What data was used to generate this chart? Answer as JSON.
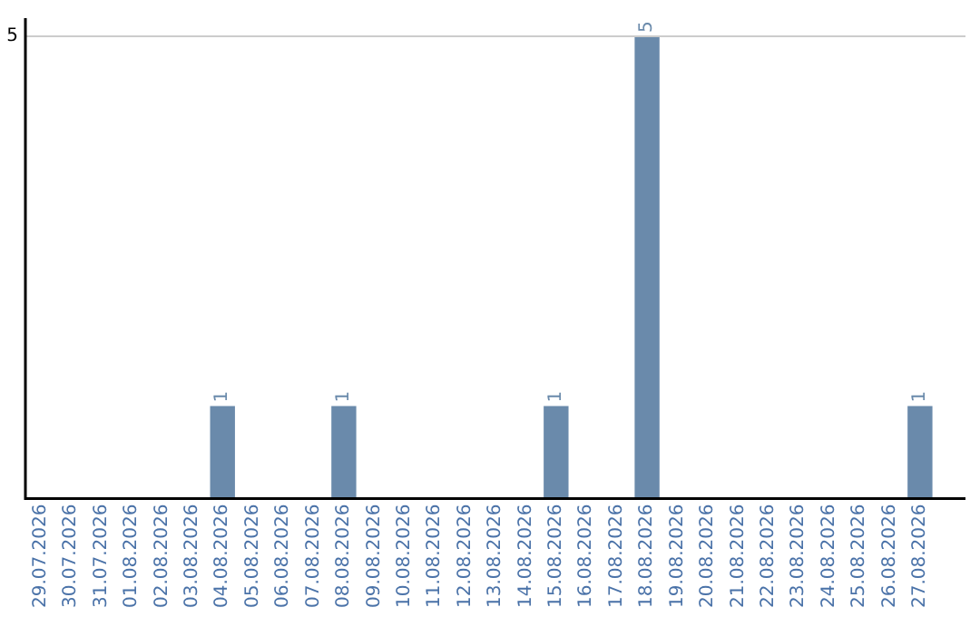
{
  "chart_data": {
    "type": "bar",
    "categories": [
      "29.07.2026",
      "30.07.2026",
      "31.07.2026",
      "01.08.2026",
      "02.08.2026",
      "03.08.2026",
      "04.08.2026",
      "05.08.2026",
      "06.08.2026",
      "07.08.2026",
      "08.08.2026",
      "09.08.2026",
      "10.08.2026",
      "11.08.2026",
      "12.08.2026",
      "13.08.2026",
      "14.08.2026",
      "15.08.2026",
      "16.08.2026",
      "17.08.2026",
      "18.08.2026",
      "19.08.2026",
      "20.08.2026",
      "21.08.2026",
      "22.08.2026",
      "23.08.2026",
      "24.08.2026",
      "25.08.2026",
      "26.08.2026",
      "27.08.2026",
      null
    ],
    "values": [
      0,
      0,
      0,
      0,
      0,
      0,
      1,
      0,
      0,
      0,
      1,
      0,
      0,
      0,
      0,
      0,
      0,
      1,
      0,
      0,
      5,
      0,
      0,
      0,
      0,
      0,
      0,
      0,
      0,
      1,
      0
    ],
    "value_labels": [
      null,
      null,
      null,
      null,
      null,
      null,
      "1",
      null,
      null,
      null,
      "1",
      null,
      null,
      null,
      null,
      null,
      null,
      "1",
      null,
      null,
      "5",
      null,
      null,
      null,
      null,
      null,
      null,
      null,
      null,
      "1",
      null
    ],
    "color": "#6a8aab",
    "ref_lines": [
      {
        "axis": "y",
        "value": 5,
        "label": "5",
        "color": "#cccccc"
      }
    ],
    "legend": false
  }
}
